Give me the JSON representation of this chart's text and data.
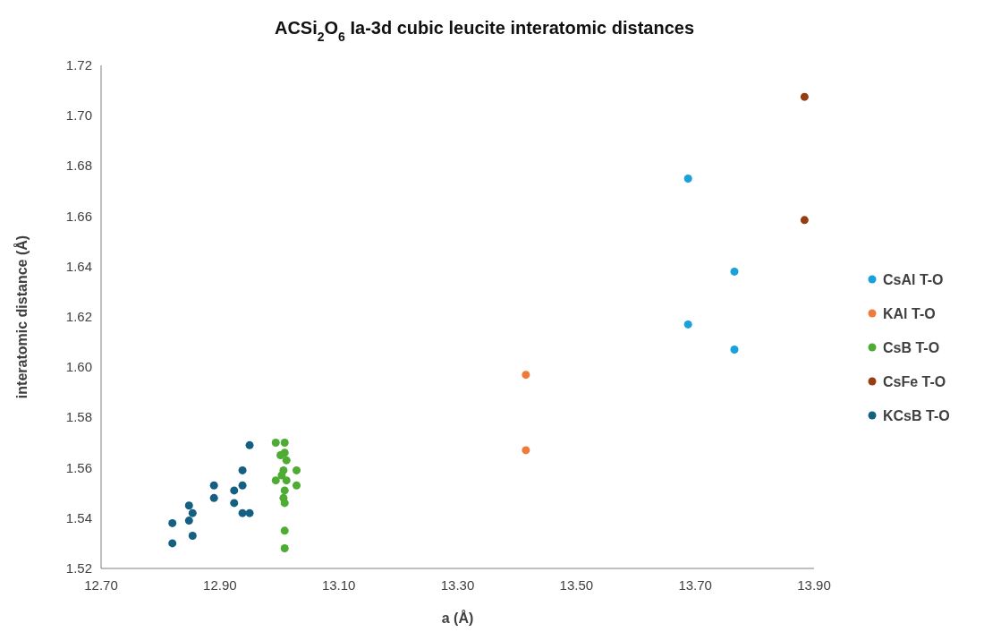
{
  "chart_data": {
    "type": "scatter",
    "title": "ACSi$_{2}$O$_{6}$ Ia-3d cubic leucite interatomic distances",
    "xlabel": "a (Å)",
    "ylabel": "interatomic distance (Å)",
    "xlim": [
      12.7,
      13.9
    ],
    "xticks": [
      {
        "value": 12.7,
        "label": "12.70"
      },
      {
        "value": 12.9,
        "label": "12.90"
      },
      {
        "value": 13.1,
        "label": "13.10"
      },
      {
        "value": 13.3,
        "label": "13.30"
      },
      {
        "value": 13.5,
        "label": "13.50"
      },
      {
        "value": 13.7,
        "label": "13.70"
      },
      {
        "value": 13.9,
        "label": "13.90"
      }
    ],
    "ylim": [
      1.52,
      1.72
    ],
    "yticks": [
      {
        "value": 1.52,
        "label": "1.52"
      },
      {
        "value": 1.54,
        "label": "1.54"
      },
      {
        "value": 1.56,
        "label": "1.56"
      },
      {
        "value": 1.58,
        "label": "1.58"
      },
      {
        "value": 1.6,
        "label": "1.60"
      },
      {
        "value": 1.62,
        "label": "1.62"
      },
      {
        "value": 1.64,
        "label": "1.64"
      },
      {
        "value": 1.66,
        "label": "1.66"
      },
      {
        "value": 1.68,
        "label": "1.68"
      },
      {
        "value": 1.7,
        "label": "1.70"
      },
      {
        "value": 1.72,
        "label": "1.72"
      }
    ],
    "grid": false,
    "legend": "right",
    "marker": "circle",
    "series": [
      {
        "name": "CsAl T-O",
        "color": "#1aa1db",
        "x": [
          13.688,
          13.766,
          13.688,
          13.766
        ],
        "values": [
          1.675,
          1.638,
          1.617,
          1.607
        ]
      },
      {
        "name": "KAl T-O",
        "color": "#ef7b3b",
        "x": [
          13.415,
          13.415
        ],
        "values": [
          1.597,
          1.567
        ]
      },
      {
        "name": "CsB T-O",
        "color": "#4eab34",
        "x": [
          12.994,
          13.009,
          13.009,
          13.002,
          13.012,
          13.029,
          13.007,
          13.004,
          12.994,
          13.012,
          13.029,
          13.009,
          13.007,
          13.009,
          13.009,
          13.009
        ],
        "values": [
          1.57,
          1.57,
          1.566,
          1.565,
          1.563,
          1.559,
          1.559,
          1.557,
          1.555,
          1.555,
          1.553,
          1.551,
          1.548,
          1.546,
          1.535,
          1.528
        ]
      },
      {
        "name": "CsFe T-O",
        "color": "#963e12",
        "x": [
          13.884,
          13.884
        ],
        "values": [
          1.7075,
          1.6585
        ]
      },
      {
        "name": "KCsB T-O",
        "color": "#155f82",
        "x": [
          12.82,
          12.82,
          12.848,
          12.854,
          12.848,
          12.854,
          12.89,
          12.89,
          12.924,
          12.924,
          12.938,
          12.938,
          12.938,
          12.95,
          12.95
        ],
        "values": [
          1.538,
          1.53,
          1.545,
          1.542,
          1.539,
          1.533,
          1.553,
          1.548,
          1.551,
          1.546,
          1.559,
          1.553,
          1.542,
          1.542,
          1.569
        ]
      }
    ]
  }
}
